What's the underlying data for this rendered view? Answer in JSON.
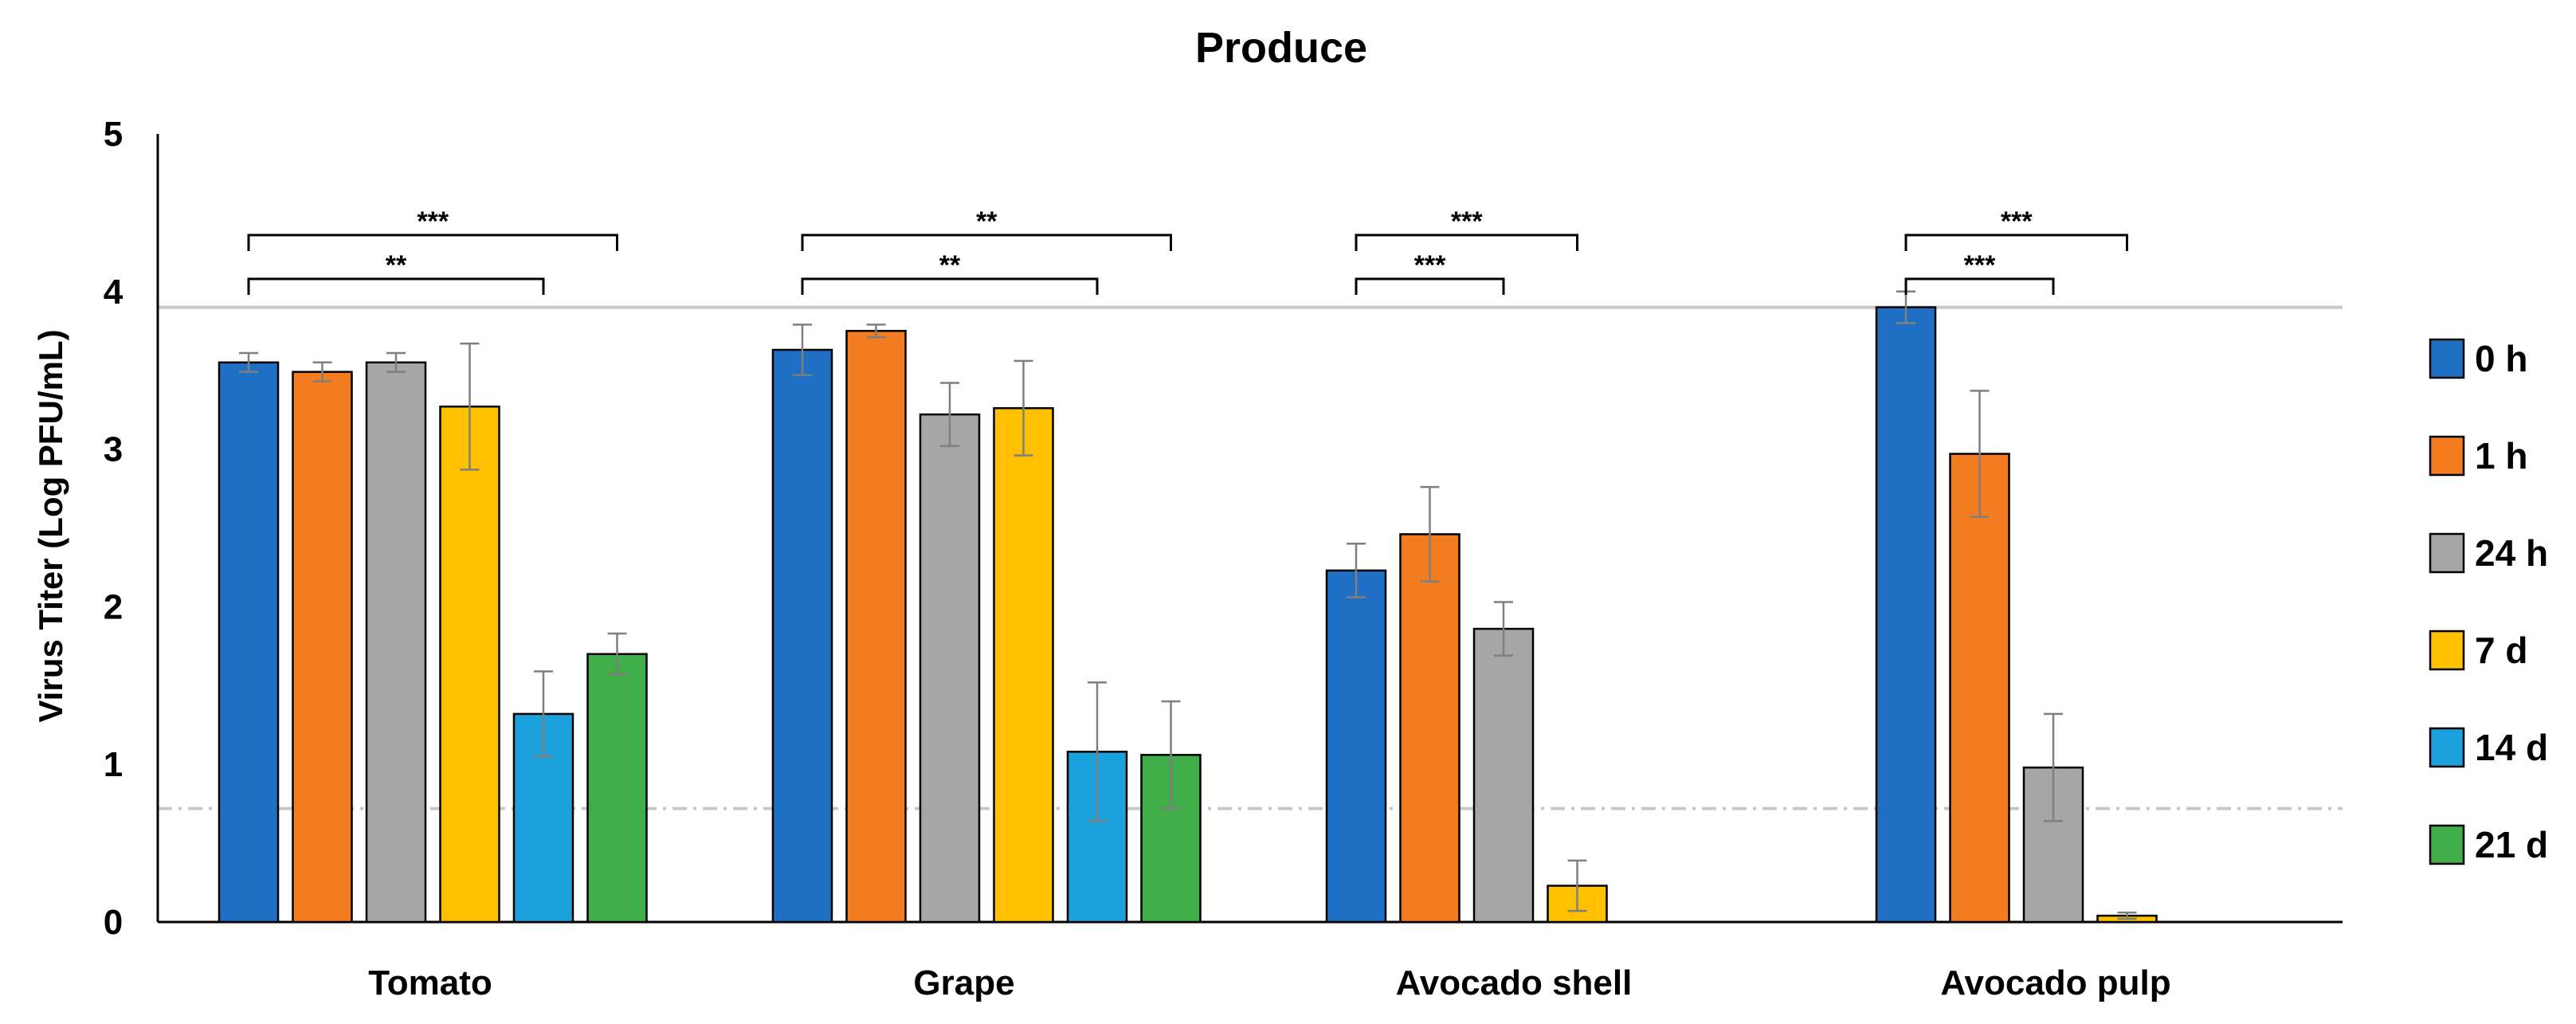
{
  "chart_data": {
    "type": "bar",
    "title": "Produce",
    "xlabel": "",
    "ylabel": "Virus Titer (Log PFU/mL)",
    "ylim": [
      0,
      5
    ],
    "yticks": [
      "0",
      "1",
      "2",
      "3",
      "4",
      "5"
    ],
    "categories": [
      "Tomato",
      "Grape",
      "Avocado shell",
      "Avocado pulp"
    ],
    "series": [
      {
        "name": "0 h",
        "color": "#1f6fc5",
        "values": [
          3.55,
          3.63,
          2.23,
          3.9
        ],
        "errors": [
          0.06,
          0.16,
          0.17,
          0.1
        ]
      },
      {
        "name": "1 h",
        "color": "#f47c20",
        "values": [
          3.49,
          3.75,
          2.46,
          2.97
        ],
        "errors": [
          0.06,
          0.04,
          0.3,
          0.4
        ]
      },
      {
        "name": "24 h",
        "color": "#a6a6a6",
        "values": [
          3.55,
          3.22,
          1.86,
          0.98
        ],
        "errors": [
          0.06,
          0.2,
          0.17,
          0.34
        ]
      },
      {
        "name": "7 d",
        "color": "#ffc000",
        "values": [
          3.27,
          3.26,
          0.23,
          0.04
        ],
        "errors": [
          0.4,
          0.3,
          0.16,
          0.02
        ]
      },
      {
        "name": "14 d",
        "color": "#1ba1db",
        "values": [
          1.32,
          1.08,
          null,
          null
        ],
        "errors": [
          0.27,
          0.44,
          null,
          null
        ]
      },
      {
        "name": "21 d",
        "color": "#3fae49",
        "values": [
          1.7,
          1.06,
          null,
          null
        ],
        "errors": [
          0.13,
          0.34,
          null,
          null
        ]
      }
    ],
    "reference_lines": [
      {
        "value": 3.9,
        "style": "solid",
        "color": "#c8c8c8"
      },
      {
        "value": 0.72,
        "style": "dash-dot",
        "color": "#c8c8c8"
      }
    ],
    "significance": [
      {
        "group": 0,
        "from_series": 0,
        "to_series": 5,
        "label": "***",
        "level": 2
      },
      {
        "group": 0,
        "from_series": 0,
        "to_series": 4,
        "label": "**",
        "level": 1
      },
      {
        "group": 1,
        "from_series": 0,
        "to_series": 5,
        "label": "**",
        "level": 2
      },
      {
        "group": 1,
        "from_series": 0,
        "to_series": 4,
        "label": "**",
        "level": 1
      },
      {
        "group": 2,
        "from_series": 0,
        "to_series": 3,
        "label": "***",
        "level": 2
      },
      {
        "group": 2,
        "from_series": 0,
        "to_series": 2,
        "label": "***",
        "level": 1
      },
      {
        "group": 3,
        "from_series": 0,
        "to_series": 3,
        "label": "***",
        "level": 2
      },
      {
        "group": 3,
        "from_series": 0,
        "to_series": 2,
        "label": "***",
        "level": 1
      }
    ],
    "legend_position": "right",
    "grid": false
  }
}
